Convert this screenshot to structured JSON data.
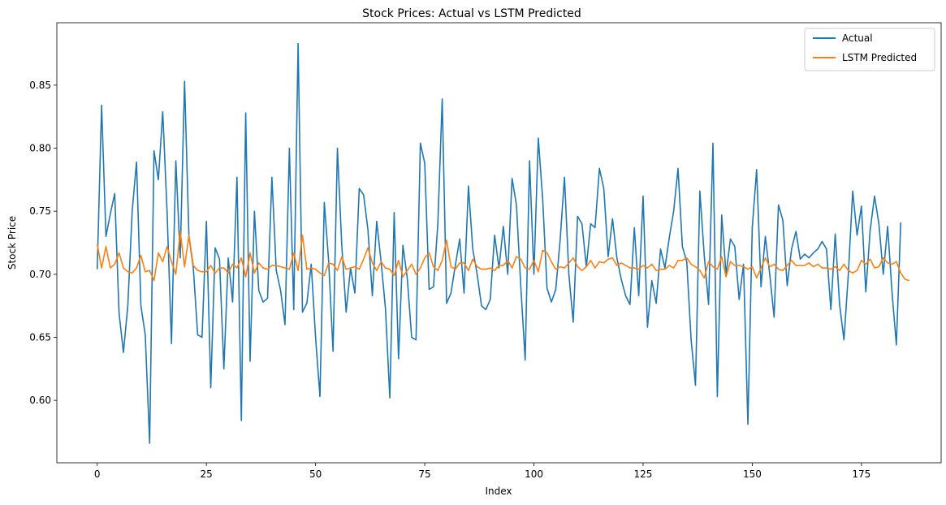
{
  "chart_data": {
    "type": "line",
    "title": "Stock Prices: Actual vs LSTM Predicted",
    "xlabel": "Index",
    "ylabel": "Stock Price",
    "xlim": [
      -9.25,
      193.25
    ],
    "ylim": [
      0.5505,
      0.8995
    ],
    "xticks": [
      0,
      25,
      50,
      75,
      100,
      125,
      150,
      175
    ],
    "yticks": [
      0.6,
      0.65,
      0.7,
      0.75,
      0.8,
      0.85
    ],
    "xtick_labels": [
      "0",
      "25",
      "50",
      "75",
      "100",
      "125",
      "150",
      "175"
    ],
    "ytick_labels": [
      "0.60",
      "0.65",
      "0.70",
      "0.75",
      "0.80",
      "0.85"
    ],
    "grid": false,
    "legend": "top-right",
    "series": [
      {
        "name": "Actual",
        "color": "#1f77b4",
        "values": [
          0.704,
          0.834,
          0.73,
          0.748,
          0.764,
          0.669,
          0.638,
          0.675,
          0.75,
          0.789,
          0.675,
          0.652,
          0.566,
          0.798,
          0.775,
          0.829,
          0.749,
          0.645,
          0.79,
          0.713,
          0.853,
          0.73,
          0.705,
          0.652,
          0.65,
          0.742,
          0.61,
          0.721,
          0.712,
          0.625,
          0.713,
          0.678,
          0.777,
          0.584,
          0.828,
          0.631,
          0.75,
          0.687,
          0.678,
          0.681,
          0.777,
          0.703,
          0.687,
          0.66,
          0.8,
          0.672,
          0.883,
          0.67,
          0.677,
          0.708,
          0.65,
          0.603,
          0.757,
          0.71,
          0.639,
          0.8,
          0.723,
          0.67,
          0.705,
          0.685,
          0.768,
          0.763,
          0.735,
          0.683,
          0.742,
          0.71,
          0.673,
          0.602,
          0.749,
          0.633,
          0.723,
          0.697,
          0.65,
          0.648,
          0.804,
          0.788,
          0.688,
          0.69,
          0.74,
          0.839,
          0.677,
          0.685,
          0.707,
          0.728,
          0.685,
          0.77,
          0.72,
          0.7,
          0.675,
          0.672,
          0.68,
          0.731,
          0.705,
          0.738,
          0.7,
          0.776,
          0.755,
          0.69,
          0.632,
          0.79,
          0.7,
          0.808,
          0.76,
          0.689,
          0.678,
          0.688,
          0.727,
          0.777,
          0.7,
          0.662,
          0.746,
          0.74,
          0.706,
          0.74,
          0.737,
          0.784,
          0.768,
          0.714,
          0.744,
          0.713,
          0.696,
          0.683,
          0.676,
          0.737,
          0.683,
          0.762,
          0.658,
          0.695,
          0.677,
          0.72,
          0.705,
          0.729,
          0.75,
          0.784,
          0.722,
          0.71,
          0.648,
          0.612,
          0.766,
          0.715,
          0.676,
          0.804,
          0.603,
          0.747,
          0.7,
          0.728,
          0.722,
          0.68,
          0.708,
          0.581,
          0.737,
          0.783,
          0.69,
          0.73,
          0.7,
          0.666,
          0.755,
          0.743,
          0.691,
          0.72,
          0.734,
          0.712,
          0.716,
          0.713,
          0.717,
          0.72,
          0.726,
          0.72,
          0.672,
          0.732,
          0.676,
          0.648,
          0.7,
          0.766,
          0.731,
          0.754,
          0.686,
          0.735,
          0.762,
          0.74,
          0.7,
          0.738,
          0.686,
          0.644,
          0.741
        ]
      },
      {
        "name": "LSTM Predicted",
        "color": "#ff7f0e",
        "values": [
          0.724,
          0.705,
          0.722,
          0.705,
          0.708,
          0.717,
          0.705,
          0.702,
          0.701,
          0.705,
          0.715,
          0.702,
          0.703,
          0.695,
          0.717,
          0.71,
          0.722,
          0.71,
          0.7,
          0.734,
          0.706,
          0.731,
          0.707,
          0.703,
          0.702,
          0.702,
          0.707,
          0.701,
          0.705,
          0.705,
          0.701,
          0.708,
          0.705,
          0.713,
          0.698,
          0.717,
          0.701,
          0.709,
          0.705,
          0.704,
          0.707,
          0.707,
          0.706,
          0.705,
          0.704,
          0.717,
          0.703,
          0.731,
          0.704,
          0.705,
          0.704,
          0.701,
          0.699,
          0.709,
          0.708,
          0.703,
          0.714,
          0.704,
          0.705,
          0.706,
          0.704,
          0.712,
          0.721,
          0.709,
          0.703,
          0.71,
          0.705,
          0.704,
          0.699,
          0.711,
          0.698,
          0.703,
          0.708,
          0.7,
          0.705,
          0.713,
          0.717,
          0.706,
          0.703,
          0.711,
          0.727,
          0.706,
          0.704,
          0.709,
          0.709,
          0.703,
          0.712,
          0.706,
          0.704,
          0.704,
          0.705,
          0.703,
          0.707,
          0.707,
          0.711,
          0.705,
          0.714,
          0.712,
          0.705,
          0.704,
          0.711,
          0.702,
          0.719,
          0.717,
          0.71,
          0.704,
          0.706,
          0.705,
          0.709,
          0.713,
          0.706,
          0.703,
          0.706,
          0.711,
          0.705,
          0.71,
          0.709,
          0.712,
          0.713,
          0.707,
          0.709,
          0.707,
          0.705,
          0.705,
          0.704,
          0.707,
          0.705,
          0.708,
          0.703,
          0.704,
          0.704,
          0.707,
          0.705,
          0.711,
          0.711,
          0.713,
          0.708,
          0.706,
          0.703,
          0.697,
          0.71,
          0.706,
          0.704,
          0.714,
          0.698,
          0.71,
          0.707,
          0.707,
          0.706,
          0.704,
          0.706,
          0.697,
          0.705,
          0.713,
          0.706,
          0.708,
          0.704,
          0.703,
          0.707,
          0.711,
          0.707,
          0.707,
          0.707,
          0.709,
          0.706,
          0.708,
          0.705,
          0.705,
          0.704,
          0.706,
          0.703,
          0.708,
          0.703,
          0.701,
          0.703,
          0.711,
          0.708,
          0.712,
          0.705,
          0.706,
          0.713,
          0.709,
          0.708,
          0.71,
          0.701,
          0.696,
          0.695
        ]
      }
    ]
  }
}
